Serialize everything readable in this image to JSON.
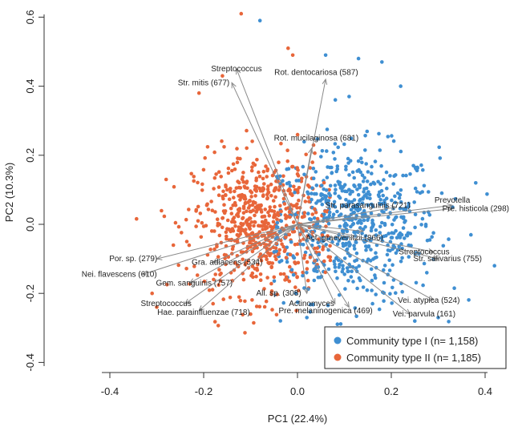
{
  "chart_data": {
    "type": "scatter",
    "title": "",
    "xlabel": "PC1 (22.4%)",
    "ylabel": "PC2 (10.3%)",
    "xlim": [
      -0.45,
      0.45
    ],
    "ylim": [
      -0.43,
      0.62
    ],
    "xticks": [
      -0.4,
      -0.2,
      0.0,
      0.2,
      0.4
    ],
    "xtick_labels": [
      "-0.4",
      "-0.2",
      "0.0",
      "0.2",
      "0.4"
    ],
    "yticks": [
      -0.4,
      -0.2,
      0.0,
      0.2,
      0.4,
      0.6
    ],
    "ytick_labels": [
      "-0.4",
      "-0.2",
      "0.0",
      "0.2",
      "0.4",
      "0.6"
    ],
    "grid": false,
    "legend_position": "bottom-right",
    "series": [
      {
        "name": "Community type I (n= 1,158)",
        "color": "#3f8fd2",
        "count": 1158,
        "center": [
          0.12,
          0.0
        ],
        "spread": [
          0.09,
          0.11
        ],
        "points": [
          [
            -0.08,
            0.59
          ],
          [
            0.06,
            0.49
          ],
          [
            0.13,
            0.48
          ],
          [
            0.18,
            0.47
          ],
          [
            0.22,
            0.4
          ],
          [
            0.11,
            0.37
          ],
          [
            0.38,
            0.12
          ],
          [
            0.42,
            -0.12
          ],
          [
            0.3,
            -0.27
          ],
          [
            0.25,
            -0.28
          ],
          [
            0.02,
            -0.27
          ],
          [
            0.16,
            -0.23
          ]
        ]
      },
      {
        "name": "Community type II (n= 1,185)",
        "color": "#e8663a",
        "count": 1185,
        "center": [
          -0.08,
          0.0
        ],
        "spread": [
          0.07,
          0.1
        ],
        "points": [
          [
            -0.12,
            0.61
          ],
          [
            -0.02,
            0.51
          ],
          [
            -0.01,
            0.49
          ],
          [
            -0.16,
            0.43
          ],
          [
            -0.21,
            0.38
          ],
          [
            -0.28,
            0.13
          ],
          [
            -0.31,
            -0.2
          ],
          [
            -0.3,
            -0.24
          ],
          [
            -0.18,
            -0.23
          ],
          [
            -0.1,
            -0.26
          ]
        ]
      }
    ],
    "arrows": [
      {
        "label": "Streptococcus",
        "x": -0.13,
        "y": 0.45,
        "lx": -0.13,
        "ly": 0.45
      },
      {
        "label": "Str. mitis (677)",
        "x": -0.14,
        "y": 0.41,
        "lx": -0.2,
        "ly": 0.41
      },
      {
        "label": "Rot. dentocariosa (587)",
        "x": 0.06,
        "y": 0.42,
        "lx": 0.04,
        "ly": 0.44
      },
      {
        "label": "Rot. mucilaginosa (681)",
        "x": 0.03,
        "y": 0.22,
        "lx": 0.04,
        "ly": 0.25
      },
      {
        "label": "Str. parasanguinis (721)",
        "x": 0.21,
        "y": 0.05,
        "lx": 0.15,
        "ly": 0.055
      },
      {
        "label": "Prevotella",
        "x": 0.33,
        "y": 0.055,
        "lx": 0.33,
        "ly": 0.07
      },
      {
        "label": "Pre. histicola (298)",
        "x": 0.33,
        "y": 0.045,
        "lx": 0.38,
        "ly": 0.045
      },
      {
        "label": "Act. graevenitzii (866)",
        "x": 0.14,
        "y": -0.02,
        "lx": 0.1,
        "ly": -0.04
      },
      {
        "label": "Streptococcus",
        "x": 0.29,
        "y": -0.08,
        "lx": 0.27,
        "ly": -0.08
      },
      {
        "label": "Str. salivarius (755)",
        "x": 0.3,
        "y": -0.1,
        "lx": 0.32,
        "ly": -0.1
      },
      {
        "label": "Vei. atypica (524)",
        "x": 0.29,
        "y": -0.22,
        "lx": 0.28,
        "ly": -0.22
      },
      {
        "label": "Vei. parvula (161)",
        "x": 0.24,
        "y": -0.26,
        "lx": 0.27,
        "ly": -0.26
      },
      {
        "label": "Pre. melaninogenica (469)",
        "x": 0.11,
        "y": -0.24,
        "lx": 0.06,
        "ly": -0.25
      },
      {
        "label": "Actinomyces",
        "x": 0.08,
        "y": -0.23,
        "lx": 0.03,
        "ly": -0.23
      },
      {
        "label": "All. sp. (308)",
        "x": 0.02,
        "y": -0.2,
        "lx": -0.04,
        "ly": -0.2
      },
      {
        "label": "Gra. adiacens (534)",
        "x": -0.18,
        "y": -0.11,
        "lx": -0.15,
        "ly": -0.11
      },
      {
        "label": "Gem. sanguinis (757)",
        "x": -0.23,
        "y": -0.17,
        "lx": -0.22,
        "ly": -0.17
      },
      {
        "label": "Por. sp. (279)",
        "x": -0.3,
        "y": -0.1,
        "lx": -0.35,
        "ly": -0.1
      },
      {
        "label": "Nei. flavescens (610)",
        "x": -0.33,
        "y": -0.145,
        "lx": -0.38,
        "ly": -0.145
      },
      {
        "label": "Streptococcus",
        "x": -0.24,
        "y": -0.23,
        "lx": -0.28,
        "ly": -0.23
      },
      {
        "label": "Hae. parainfluenzae (718)",
        "x": -0.21,
        "y": -0.25,
        "lx": -0.2,
        "ly": -0.255
      }
    ]
  }
}
